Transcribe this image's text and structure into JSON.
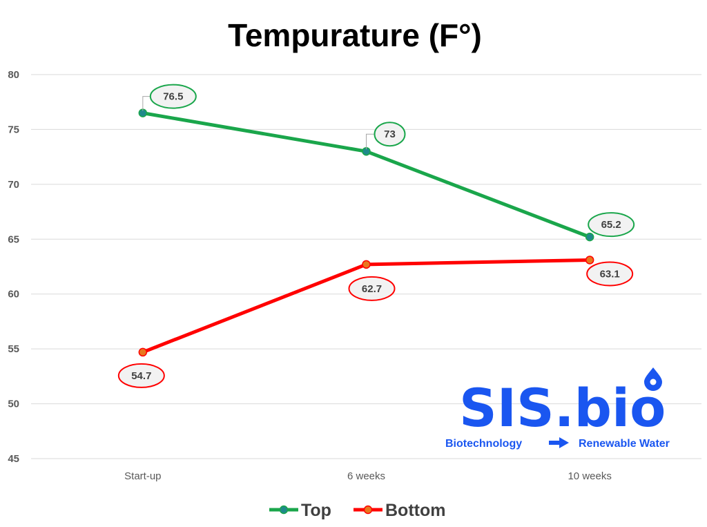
{
  "chart_data": {
    "type": "line",
    "title": "Tempurature (F°)",
    "xlabel": "",
    "ylabel": "",
    "categories": [
      "Start-up",
      "6 weeks",
      "10 weeks"
    ],
    "ylim": [
      45,
      80
    ],
    "yticks": [
      45,
      50,
      55,
      60,
      65,
      70,
      75,
      80
    ],
    "grid": true,
    "legend_position": "bottom",
    "series": [
      {
        "name": "Top",
        "values": [
          76.5,
          73,
          65.2
        ],
        "labels": [
          "76.5",
          "73",
          "65.2"
        ],
        "color": "#1aa64b",
        "marker_color": "#1f8a8a"
      },
      {
        "name": "Bottom",
        "values": [
          54.7,
          62.7,
          63.1
        ],
        "labels": [
          "54.7",
          "62.7",
          "63.1"
        ],
        "color": "#ff0000",
        "marker_color": "#e8781e"
      }
    ]
  },
  "logo": {
    "name": "SIS.bio",
    "tagline_left": "Biotechnology",
    "tagline_right": "Renewable Water",
    "color": "#1a56f0"
  }
}
